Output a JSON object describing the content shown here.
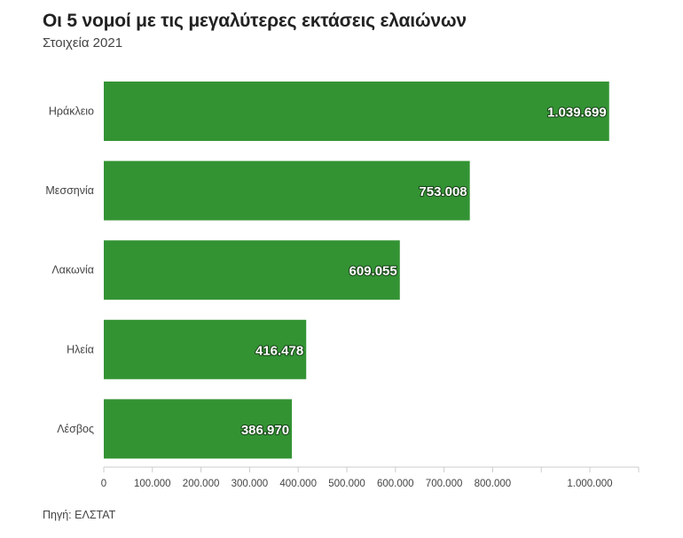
{
  "title": "Οι 5 νομοί με τις μεγαλύτερες εκτάσεις ελαιώνων",
  "subtitle": "Στοιχεία 2021",
  "source": "Πηγή: ΕΛΣΤΑΤ",
  "colors": {
    "bar": "#339333",
    "axis": "#cccccc"
  },
  "chart_data": {
    "type": "bar",
    "orientation": "horizontal",
    "categories": [
      "Ηράκλειο",
      "Μεσσηνία",
      "Λακωνία",
      "Ηλεία",
      "Λέσβος"
    ],
    "values": [
      1039699,
      753008,
      609055,
      416478,
      386970
    ],
    "value_labels": [
      "1.039.699",
      "753.008",
      "609.055",
      "416.478",
      "386.970"
    ],
    "x_ticks": [
      0,
      100000,
      200000,
      300000,
      400000,
      500000,
      600000,
      700000,
      800000,
      1000000
    ],
    "x_tick_labels": [
      "0",
      "100.000",
      "200.000",
      "300.000",
      "400.000",
      "500.000",
      "600.000",
      "700.000",
      "800.000",
      "1.000.000"
    ],
    "xlim": [
      0,
      1100000
    ],
    "title": "Οι 5 νομοί με τις μεγαλύτερες εκτάσεις ελαιώνων",
    "subtitle": "Στοιχεία 2021",
    "xlabel": "",
    "ylabel": "",
    "grid": false,
    "legend": "none"
  }
}
